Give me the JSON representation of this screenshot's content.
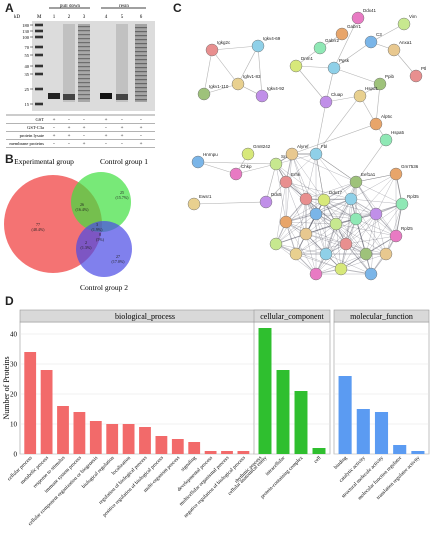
{
  "panels": {
    "a": "A",
    "b": "B",
    "c": "C",
    "d": "D"
  },
  "gel": {
    "kd_label": "kD",
    "marker_label": "M",
    "lane_numbers": [
      "1",
      "2",
      "3",
      "4",
      "5",
      "6"
    ],
    "group_labels": [
      "pull down",
      "resin"
    ],
    "markers": [
      "180",
      "130",
      "100",
      "70",
      "55",
      "40",
      "35",
      "25",
      "15"
    ],
    "row_labels": [
      "GST",
      "GST-C3a",
      "protein lysate",
      "membrane proteins"
    ],
    "row_signs": [
      [
        "+",
        "-",
        "-",
        "+",
        "-",
        "-"
      ],
      [
        "-",
        "+",
        "+",
        "-",
        "+",
        "+"
      ],
      [
        "+",
        "+",
        "-",
        "+",
        "+",
        "-"
      ],
      [
        "-",
        "-",
        "+",
        "-",
        "-",
        "+"
      ]
    ]
  },
  "venn": {
    "labels": [
      "Experimental group",
      "Control group 1",
      "Control group 2"
    ],
    "colors": [
      "#f25a5a",
      "#3ee03e",
      "#4a4ae6"
    ],
    "regions": [
      {
        "count": "77",
        "pct": "(48.4%)"
      },
      {
        "count": "25",
        "pct": "(15.7%)"
      },
      {
        "count": "27",
        "pct": "(17.0%)"
      },
      {
        "count": "26",
        "pct": "(16.4%)"
      },
      {
        "count": "8",
        "pct": "(5%)"
      },
      {
        "count": "2",
        "pct": "(1.3%)"
      },
      {
        "count": "3",
        "pct": "(1.9%)"
      }
    ]
  },
  "network": {
    "node_labels": [
      "Igkg2c",
      "Igkv4-69",
      "Igkv1-110",
      "Ighv1-83",
      "Igkv4-92",
      "Gabrr1",
      "Gabrr2",
      "Dnm1",
      "Ddx41",
      "C3",
      "Vim",
      "Anxa1",
      "Ptbp3",
      "Pgsk",
      "Ppib",
      "Hspd1",
      "Cluap",
      "Alp5c",
      "Hspa5",
      "Gm8242",
      "Chkp",
      "Hnrnpu",
      "Srsf1",
      "Alyref",
      "Erhk",
      "Fbl",
      "Eef1a1",
      "Ewsr1",
      "Ddx5",
      "Gm7536",
      "Rpl35",
      "Ddx17",
      "Rpl25"
    ],
    "node_colors": [
      "#e88f8f",
      "#8fd0e8",
      "#9ec27a",
      "#e8d08f",
      "#c08fe8",
      "#e8a56a",
      "#8fe8b5",
      "#d7e87a",
      "#e87ac3",
      "#7ab5e8",
      "#c7e88f",
      "#e8c88f"
    ]
  },
  "chart_data": {
    "type": "bar",
    "ylabel": "Number of Proteins",
    "ylim": [
      0,
      44
    ],
    "yticks": [
      0,
      10,
      20,
      30,
      40
    ],
    "grid": true,
    "facets": [
      {
        "name": "biological_process",
        "color": "#f26a6a",
        "categories": [
          "cellular process",
          "metabolic process",
          "response to stimulus",
          "immune system process",
          "cellular component organization or biogenesis",
          "biological regulation",
          "localization",
          "regulation of biological process",
          "positive regulation of biological process",
          "multi-organism process",
          "signaling",
          "developmental process",
          "multicellular organismal process",
          "negative regulation of biological process",
          "rhythmic process"
        ],
        "values": [
          34,
          28,
          16,
          14,
          11,
          10,
          10,
          9,
          6,
          5,
          4,
          1,
          1,
          1,
          1
        ]
      },
      {
        "name": "cellular_component",
        "color": "#2fbf2f",
        "categories": [
          "cellular anatomical entity",
          "intracellular",
          "protein-containing complex",
          "cell"
        ],
        "values": [
          42,
          28,
          21,
          2
        ]
      },
      {
        "name": "molecular_function",
        "color": "#5b9bf2",
        "categories": [
          "binding",
          "catalytic activity",
          "structural molecule activity",
          "molecular function regulator",
          "translation regulator activity"
        ],
        "values": [
          26,
          15,
          14,
          3,
          1
        ]
      }
    ]
  }
}
